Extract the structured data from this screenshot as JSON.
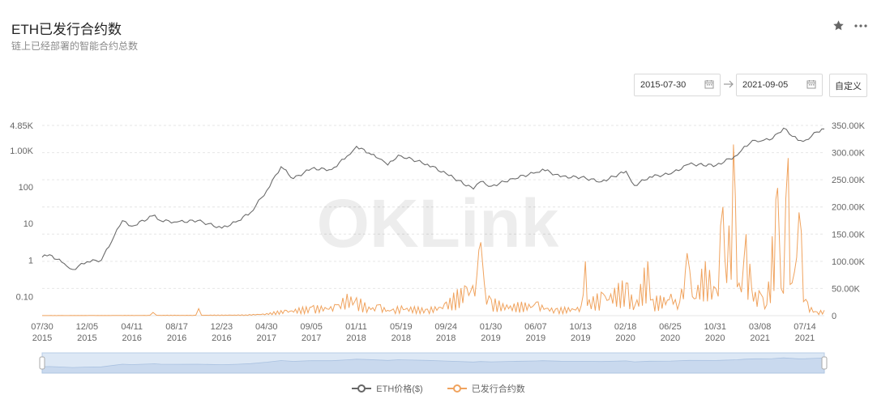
{
  "header": {
    "title": "ETH已发行合约数",
    "subtitle": "链上已经部署的智能合约总数"
  },
  "icons": {
    "star": "star-icon",
    "more": "more-icon",
    "calendar": "calendar-icon",
    "arrow": "arrow-right-icon"
  },
  "date_range": {
    "start": "2015-07-30",
    "end": "2021-09-05",
    "custom_label": "自定义"
  },
  "watermark": "OKLink",
  "colors": {
    "eth": "#6b6b6b",
    "contracts": "#f0a35e",
    "grid": "#e6e6e6",
    "navigator_fill": "#dde8f5",
    "navigator_border": "#b8cde6"
  },
  "chart_data": {
    "type": "line",
    "x_tick_labels": [
      [
        "07/30",
        "2015"
      ],
      [
        "12/05",
        "2015"
      ],
      [
        "04/11",
        "2016"
      ],
      [
        "08/17",
        "2016"
      ],
      [
        "12/23",
        "2016"
      ],
      [
        "04/30",
        "2017"
      ],
      [
        "09/05",
        "2017"
      ],
      [
        "01/11",
        "2018"
      ],
      [
        "05/19",
        "2018"
      ],
      [
        "09/24",
        "2018"
      ],
      [
        "01/30",
        "2019"
      ],
      [
        "06/07",
        "2019"
      ],
      [
        "10/13",
        "2019"
      ],
      [
        "02/18",
        "2020"
      ],
      [
        "06/25",
        "2020"
      ],
      [
        "10/31",
        "2020"
      ],
      [
        "03/08",
        "2021"
      ],
      [
        "07/14",
        "2021"
      ]
    ],
    "x_range": [
      "2015-07-30",
      "2021-09-05"
    ],
    "y_left": {
      "scale": "log",
      "tick_labels": [
        "4.85K",
        "1.00K",
        "100",
        "10",
        "1",
        "0.10"
      ],
      "tick_values": [
        4850,
        1000,
        100,
        10,
        1,
        0.1
      ],
      "range": [
        0.03,
        4850
      ]
    },
    "y_right": {
      "scale": "linear",
      "tick_labels": [
        "350.00K",
        "300.00K",
        "250.00K",
        "200.00K",
        "150.00K",
        "100.00K",
        "50.00K",
        "0"
      ],
      "range": [
        0,
        350000
      ]
    },
    "grid": true,
    "legend_position": "bottom-center",
    "series": [
      {
        "name": "ETH价格($)",
        "axis": "left",
        "points": [
          [
            "2015-07-30",
            1.2
          ],
          [
            "2015-08-20",
            1.4
          ],
          [
            "2015-10-01",
            0.8
          ],
          [
            "2015-10-25",
            0.55
          ],
          [
            "2015-12-05",
            0.9
          ],
          [
            "2016-01-15",
            1.0
          ],
          [
            "2016-02-20",
            4.5
          ],
          [
            "2016-03-15",
            12
          ],
          [
            "2016-04-11",
            8.5
          ],
          [
            "2016-06-15",
            17
          ],
          [
            "2016-07-01",
            12
          ],
          [
            "2016-08-17",
            11
          ],
          [
            "2016-10-15",
            12
          ],
          [
            "2016-12-23",
            7.5
          ],
          [
            "2017-02-01",
            11
          ],
          [
            "2017-03-15",
            20
          ],
          [
            "2017-04-30",
            80
          ],
          [
            "2017-06-10",
            360
          ],
          [
            "2017-07-15",
            170
          ],
          [
            "2017-09-05",
            320
          ],
          [
            "2017-11-01",
            300
          ],
          [
            "2017-12-15",
            700
          ],
          [
            "2018-01-11",
            1300
          ],
          [
            "2018-02-15",
            850
          ],
          [
            "2018-03-15",
            600
          ],
          [
            "2018-04-10",
            400
          ],
          [
            "2018-05-10",
            750
          ],
          [
            "2018-05-19",
            700
          ],
          [
            "2018-08-01",
            420
          ],
          [
            "2018-09-24",
            230
          ],
          [
            "2018-12-10",
            88
          ],
          [
            "2018-12-30",
            140
          ],
          [
            "2019-01-30",
            105
          ],
          [
            "2019-04-01",
            170
          ],
          [
            "2019-06-07",
            250
          ],
          [
            "2019-06-25",
            310
          ],
          [
            "2019-08-15",
            190
          ],
          [
            "2019-10-13",
            185
          ],
          [
            "2019-12-10",
            140
          ],
          [
            "2020-02-18",
            270
          ],
          [
            "2020-03-13",
            110
          ],
          [
            "2020-04-25",
            190
          ],
          [
            "2020-06-25",
            230
          ],
          [
            "2020-08-15",
            420
          ],
          [
            "2020-10-31",
            390
          ],
          [
            "2020-12-31",
            740
          ],
          [
            "2021-01-20",
            1300
          ],
          [
            "2021-02-20",
            1900
          ],
          [
            "2021-03-08",
            1800
          ],
          [
            "2021-04-10",
            2100
          ],
          [
            "2021-05-12",
            4100
          ],
          [
            "2021-06-22",
            1900
          ],
          [
            "2021-07-14",
            1950
          ],
          [
            "2021-08-15",
            3200
          ],
          [
            "2021-09-05",
            3900
          ]
        ]
      },
      {
        "name": "已发行合约数",
        "axis": "right",
        "points": [
          [
            "2015-07-30",
            200
          ],
          [
            "2016-06-01",
            600
          ],
          [
            "2016-06-10",
            6000
          ],
          [
            "2016-06-20",
            800
          ],
          [
            "2016-10-10",
            700
          ],
          [
            "2016-10-18",
            13000
          ],
          [
            "2016-10-26",
            900
          ],
          [
            "2017-03-01",
            1500
          ],
          [
            "2017-04-30",
            4000
          ],
          [
            "2017-06-20",
            10000
          ],
          [
            "2017-09-05",
            16000
          ],
          [
            "2017-11-15",
            20000
          ],
          [
            "2017-12-15",
            40000
          ],
          [
            "2018-01-11",
            33000
          ],
          [
            "2018-02-15",
            16000
          ],
          [
            "2018-03-15",
            20000
          ],
          [
            "2018-04-20",
            10000
          ],
          [
            "2018-05-19",
            18000
          ],
          [
            "2018-08-01",
            12000
          ],
          [
            "2018-09-24",
            25000
          ],
          [
            "2018-11-15",
            55000
          ],
          [
            "2018-12-20",
            75000
          ],
          [
            "2018-12-31",
            135000
          ],
          [
            "2019-01-10",
            60000
          ],
          [
            "2019-01-30",
            30000
          ],
          [
            "2019-03-15",
            20000
          ],
          [
            "2019-06-07",
            25000
          ],
          [
            "2019-08-01",
            12000
          ],
          [
            "2019-10-13",
            18000
          ],
          [
            "2019-10-25",
            100000
          ],
          [
            "2019-11-05",
            30000
          ],
          [
            "2019-12-15",
            40000
          ],
          [
            "2020-02-18",
            60000
          ],
          [
            "2020-03-15",
            20000
          ],
          [
            "2020-04-20",
            100000
          ],
          [
            "2020-05-05",
            30000
          ],
          [
            "2020-06-25",
            40000
          ],
          [
            "2020-07-20",
            25000
          ],
          [
            "2020-08-10",
            115000
          ],
          [
            "2020-08-25",
            35000
          ],
          [
            "2020-10-01",
            100000
          ],
          [
            "2020-10-31",
            50000
          ],
          [
            "2020-11-20",
            200000
          ],
          [
            "2020-12-01",
            60000
          ],
          [
            "2020-12-20",
            315000
          ],
          [
            "2021-01-05",
            60000
          ],
          [
            "2021-01-25",
            150000
          ],
          [
            "2021-02-10",
            50000
          ],
          [
            "2021-03-08",
            40000
          ],
          [
            "2021-03-25",
            20000
          ],
          [
            "2021-04-25",
            235000
          ],
          [
            "2021-05-05",
            50000
          ],
          [
            "2021-05-25",
            290000
          ],
          [
            "2021-06-05",
            60000
          ],
          [
            "2021-06-25",
            190000
          ],
          [
            "2021-07-14",
            30000
          ],
          [
            "2021-07-30",
            15000
          ],
          [
            "2021-08-15",
            7000
          ],
          [
            "2021-09-05",
            10000
          ]
        ]
      }
    ]
  }
}
